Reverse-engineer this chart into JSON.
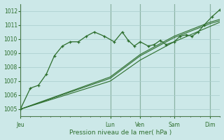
{
  "xlabel": "Pression niveau de la mer( hPa )",
  "background_color": "#cce8e8",
  "grid_color": "#a8cccc",
  "line_color": "#2d6e2d",
  "vline_color": "#4a7a4a",
  "ylim": [
    1004.5,
    1012.5
  ],
  "yticks": [
    1005,
    1006,
    1007,
    1008,
    1009,
    1010,
    1011,
    1012
  ],
  "day_labels": [
    "Jeu",
    "Lun",
    "Ven",
    "Sam",
    "Dim"
  ],
  "day_positions": [
    0,
    0.45,
    0.6,
    0.77,
    0.95
  ],
  "noisy_x": [
    0.0,
    0.05,
    0.09,
    0.13,
    0.17,
    0.21,
    0.25,
    0.29,
    0.33,
    0.37,
    0.42,
    0.47,
    0.51,
    0.54,
    0.57,
    0.6,
    0.64,
    0.67,
    0.7,
    0.73,
    0.77,
    0.8,
    0.83,
    0.86,
    0.89,
    0.92,
    0.96,
    1.0
  ],
  "noisy_y": [
    1005.0,
    1006.5,
    1006.7,
    1007.5,
    1008.8,
    1009.5,
    1009.8,
    1009.8,
    1010.2,
    1010.5,
    1010.2,
    1009.8,
    1010.5,
    1009.9,
    1009.5,
    1009.8,
    1009.5,
    1009.6,
    1009.9,
    1009.6,
    1009.8,
    1010.2,
    1010.3,
    1010.2,
    1010.5,
    1011.0,
    1011.6,
    1012.1
  ],
  "smooth_lines": [
    {
      "x": [
        0.0,
        0.45,
        0.6,
        0.77,
        0.95,
        1.0
      ],
      "y": [
        1005.0,
        1007.2,
        1008.8,
        1010.1,
        1011.1,
        1011.3
      ]
    },
    {
      "x": [
        0.0,
        0.45,
        0.6,
        0.77,
        0.95,
        1.0
      ],
      "y": [
        1005.0,
        1007.0,
        1008.5,
        1009.8,
        1010.9,
        1011.2
      ]
    },
    {
      "x": [
        0.0,
        0.45,
        0.6,
        0.77,
        0.95,
        1.0
      ],
      "y": [
        1005.0,
        1007.3,
        1008.9,
        1010.2,
        1011.2,
        1011.4
      ]
    }
  ],
  "n_xticks_minor": 20
}
